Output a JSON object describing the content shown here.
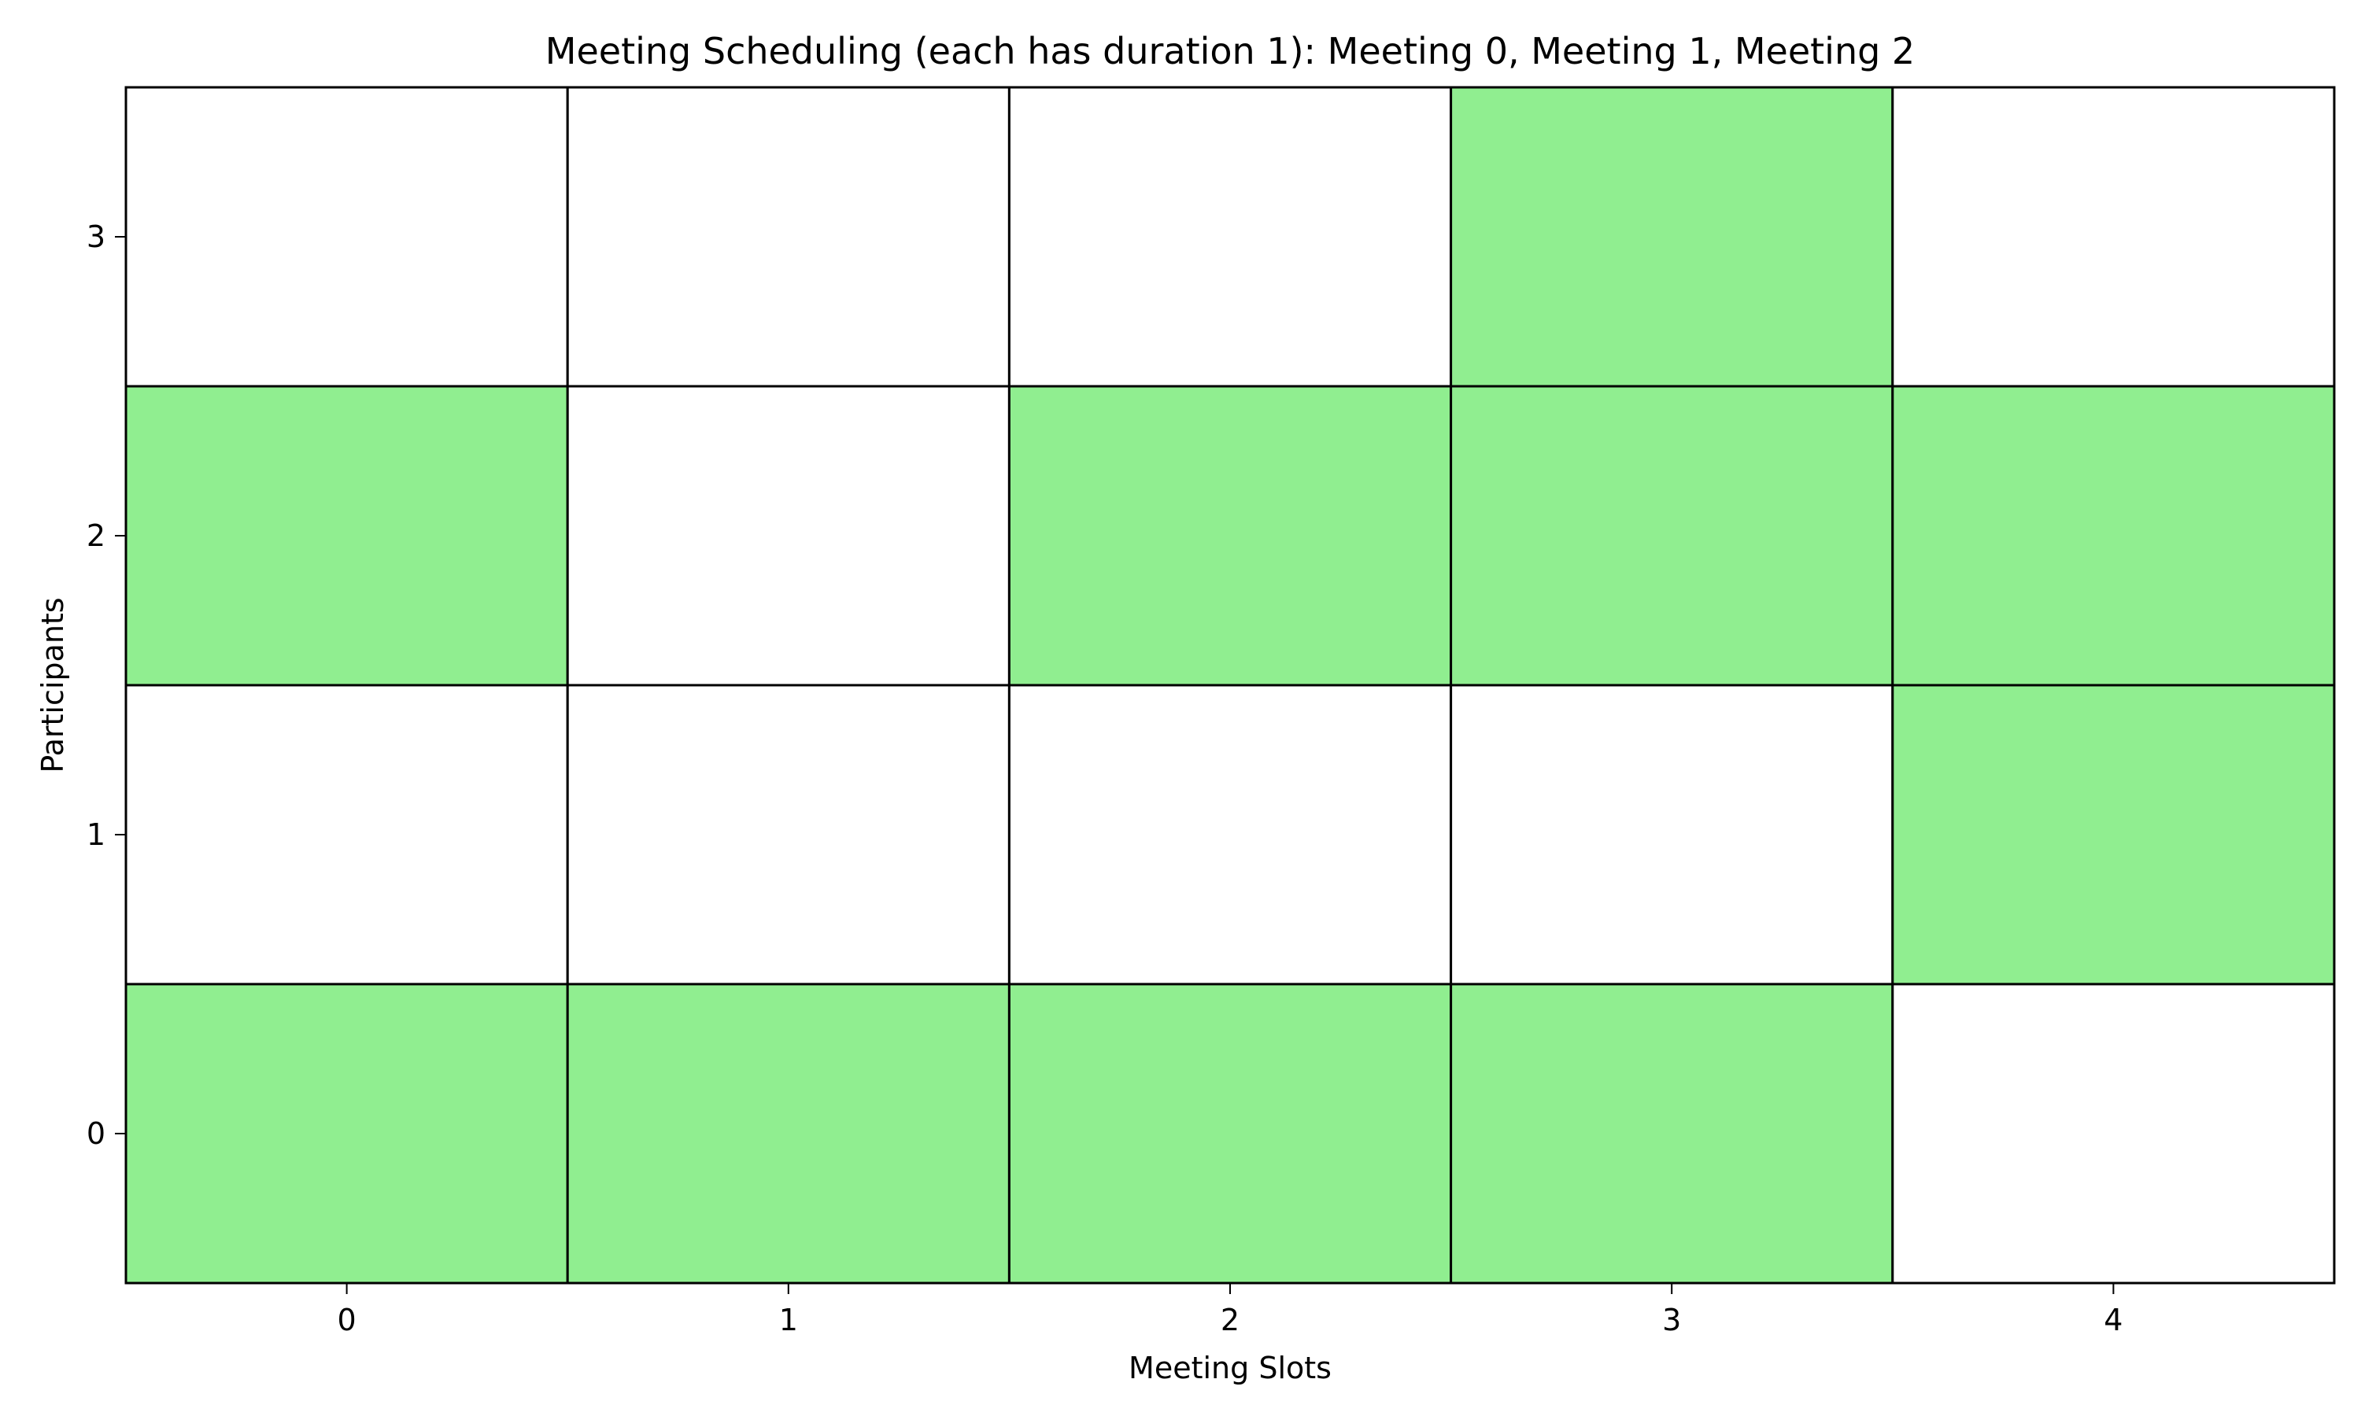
{
  "chart_data": {
    "type": "heatmap",
    "title": "Meeting Scheduling (each has duration 1): Meeting 0, Meeting 1, Meeting 2",
    "xlabel": "Meeting Slots",
    "ylabel": "Participants",
    "x_categories": [
      "0",
      "1",
      "2",
      "3",
      "4"
    ],
    "y_categories": [
      "0",
      "1",
      "2",
      "3"
    ],
    "available_color": "#90EE90",
    "unavailable_color": "#ffffff",
    "grid_color": "#000000",
    "availability": [
      [
        1,
        1,
        1,
        1,
        0
      ],
      [
        0,
        0,
        0,
        0,
        1
      ],
      [
        1,
        0,
        1,
        1,
        1
      ],
      [
        0,
        0,
        0,
        1,
        0
      ]
    ],
    "xlim": [
      -0.5,
      4.5
    ],
    "ylim": [
      -0.5,
      3.5
    ]
  }
}
